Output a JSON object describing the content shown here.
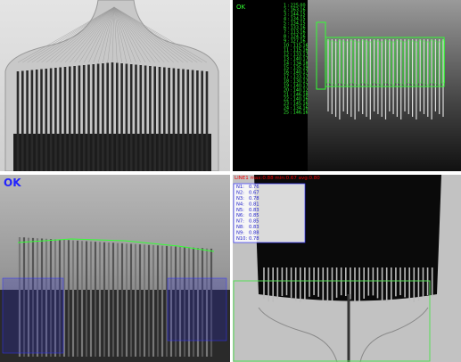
{
  "panels": {
    "top_right": {
      "status": "OK",
      "measurements": [
        "1 : 225.00",
        "2 : 163.16",
        "3 : 144.15",
        "4 : 134.15",
        "5 : 134.15",
        "6 : 133.16",
        "7 : 113.16",
        "8 : 124.16",
        "9 : 127.16",
        "10 : 115.16",
        "11 : 115.16",
        "12 : 133.17",
        "13 : 140.17",
        "14 : 134.18",
        "15 : 135.19",
        "16 : 140.17",
        "17 : 133.17",
        "18 : 130.17",
        "19 : 140.17",
        "20 : 140.12",
        "21 : 146.18",
        "22 : 140.16",
        "23 : 145.16",
        "24 : 134.16",
        "25 : 146.16"
      ]
    },
    "bottom_left": {
      "status": "OK"
    },
    "bottom_right": {
      "header": "LINE1 max:0.88 min:0.67 avg:0.80",
      "rows": [
        [
          "N1:",
          "0.76"
        ],
        [
          "N2:",
          "0.67"
        ],
        [
          "N3:",
          "0.78"
        ],
        [
          "N4:",
          "0.81"
        ],
        [
          "N5:",
          "0.83"
        ],
        [
          "N6:",
          "0.85"
        ],
        [
          "N7:",
          "0.85"
        ],
        [
          "N8:",
          "0.83"
        ],
        [
          "N9:",
          "0.88"
        ],
        [
          "N10:",
          "0.78"
        ]
      ]
    }
  }
}
